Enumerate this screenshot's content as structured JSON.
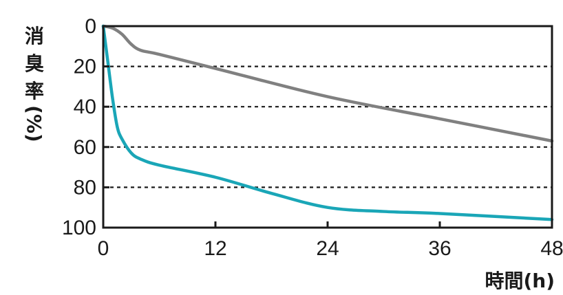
{
  "chart_data": {
    "type": "line",
    "title": "",
    "xlabel": "時間(h)",
    "ylabel": "消臭率(%)",
    "ylabel_chars": [
      "消",
      "臭",
      "率",
      "(%)"
    ],
    "xlim": [
      0,
      48
    ],
    "ylim": [
      0,
      100
    ],
    "y_inverted": true,
    "x_ticks": [
      0,
      12,
      24,
      36,
      48
    ],
    "y_ticks": [
      0,
      20,
      40,
      60,
      80,
      100
    ],
    "grid": "horizontal dashed",
    "legend": "none",
    "series": [
      {
        "color": "#808080",
        "x": [
          0,
          1,
          2,
          3,
          4,
          6,
          12,
          24,
          36,
          48
        ],
        "y": [
          0,
          1,
          4,
          9,
          12,
          14,
          21,
          35,
          46,
          57
        ]
      },
      {
        "color": "#1aa6b7",
        "x": [
          0,
          0.5,
          1,
          1.5,
          2,
          3,
          4,
          6,
          12,
          18,
          24,
          30,
          36,
          48
        ],
        "y": [
          0,
          18,
          36,
          50,
          56,
          63,
          66,
          69,
          75,
          83,
          90,
          92,
          93,
          96
        ]
      }
    ]
  }
}
